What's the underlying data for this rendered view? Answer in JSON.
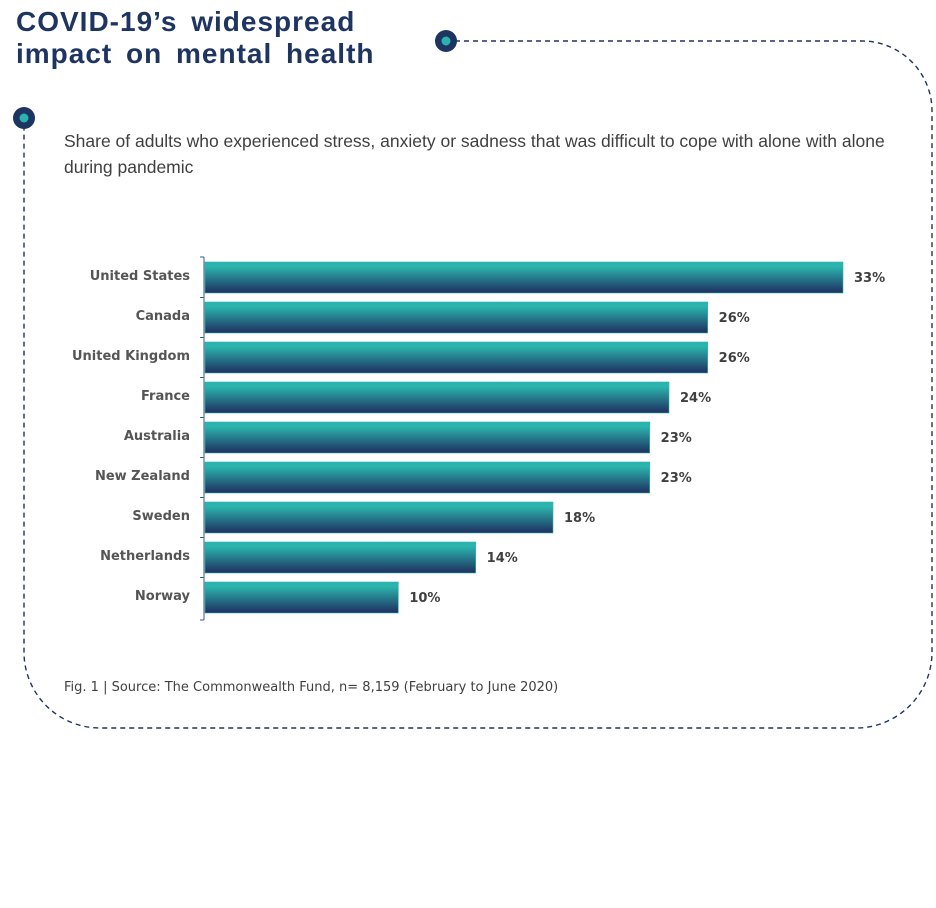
{
  "header": {
    "title": "COVID-19’s widespread impact on mental health"
  },
  "subtitle": "Share of adults who experienced stress, anxiety or sadness that was difficult to cope with alone with alone during pandemic",
  "source": "Fig. 1 | Source: The Commonwealth Fund, n= 8,159 (February to June 2020)",
  "colors": {
    "title": "#1e3461",
    "bar_top": "#2bb3ad",
    "bar_bottom": "#1e2f5e",
    "frame": "#1e3461",
    "marker_dot": "#2bb3ad"
  },
  "chart_data": {
    "type": "bar",
    "orientation": "horizontal",
    "title": "",
    "xlabel": "",
    "ylabel": "",
    "categories": [
      "United States",
      "Canada",
      "United Kingdom",
      "France",
      "Australia",
      "New Zealand",
      "Sweden",
      "Netherlands",
      "Norway"
    ],
    "values": [
      33,
      26,
      26,
      24,
      23,
      23,
      18,
      14,
      10
    ],
    "value_labels": [
      "33%",
      "26%",
      "26%",
      "24%",
      "23%",
      "23%",
      "18%",
      "14%",
      "10%"
    ],
    "unit": "%",
    "xlim": [
      0,
      33
    ],
    "grid": false,
    "legend": "none"
  }
}
